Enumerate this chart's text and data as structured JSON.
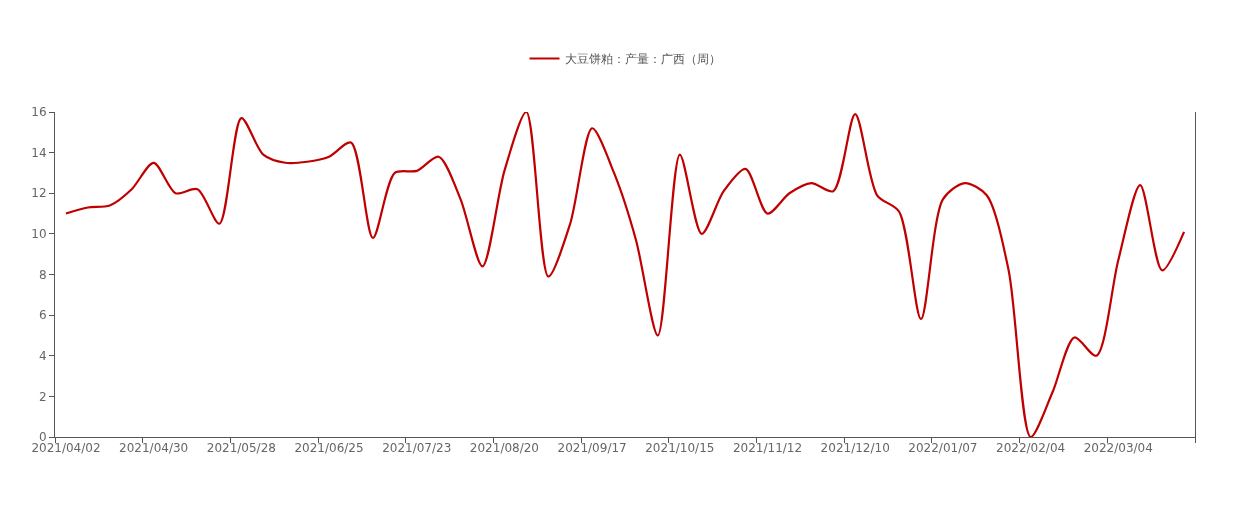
{
  "chart_data": {
    "type": "line",
    "categories": [
      "2021/04/02",
      null,
      null,
      null,
      "2021/04/30",
      null,
      null,
      null,
      "2021/05/28",
      null,
      null,
      null,
      "2021/06/25",
      null,
      null,
      null,
      "2021/07/23",
      null,
      null,
      null,
      "2021/08/20",
      null,
      null,
      null,
      "2021/09/17",
      null,
      null,
      null,
      "2021/10/15",
      null,
      null,
      null,
      "2021/11/12",
      null,
      null,
      null,
      "2021/12/10",
      null,
      null,
      null,
      "2022/01/07",
      null,
      null,
      null,
      "2022/02/04",
      null,
      null,
      null,
      "2022/03/04",
      null,
      null,
      null
    ],
    "series": [
      {
        "name": "大豆饼粕：产量：广西（周）",
        "color": "#c00000",
        "values": [
          11.0,
          11.3,
          11.4,
          12.2,
          13.5,
          12.0,
          12.2,
          10.5,
          15.7,
          13.9,
          13.5,
          13.55,
          13.8,
          14.5,
          9.8,
          13.0,
          13.1,
          13.8,
          11.7,
          8.4,
          13.1,
          16.0,
          7.9,
          10.5,
          15.2,
          13.0,
          9.7,
          5.0,
          13.9,
          10.0,
          12.1,
          13.2,
          11.0,
          12.0,
          12.5,
          12.1,
          15.9,
          11.9,
          11.1,
          5.8,
          11.7,
          12.5,
          11.9,
          8.2,
          0,
          2.2,
          4.9,
          4.0,
          8.7,
          12.4,
          8.2,
          10.1
        ]
      }
    ],
    "ylim": [
      0,
      16
    ],
    "yticks": [
      0,
      2,
      4,
      6,
      8,
      10,
      12,
      14,
      16
    ],
    "legend": "top",
    "marker": "none",
    "line_style": "solid"
  }
}
